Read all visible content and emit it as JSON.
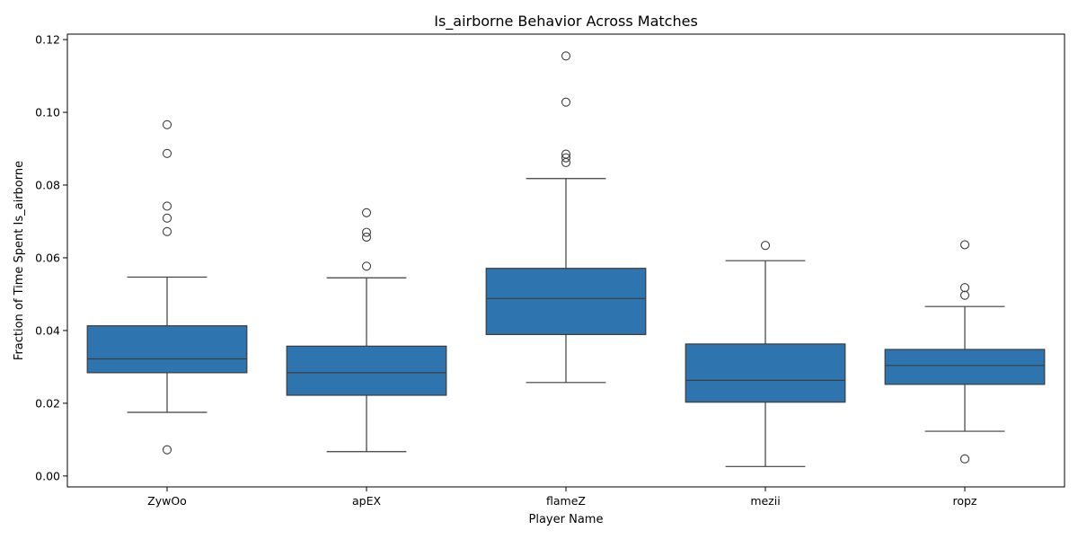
{
  "chart_data": {
    "type": "box",
    "title": "Is_airborne Behavior Across Matches",
    "xlabel": "Player Name",
    "ylabel": "Fraction of Time Spent Is_airborne",
    "ylim": [
      -0.003,
      0.1215
    ],
    "yticks": [
      "0.00",
      "0.02",
      "0.04",
      "0.06",
      "0.08",
      "0.10",
      "0.12"
    ],
    "grid": false,
    "box_color": "#2e75b0",
    "categories": [
      "ZywOo",
      "apEX",
      "flameZ",
      "mezii",
      "ropz"
    ],
    "boxes": [
      {
        "name": "ZywOo",
        "whisker_low": 0.0175,
        "q1": 0.0284,
        "median": 0.0322,
        "q3": 0.0413,
        "whisker_high": 0.0547,
        "outliers": [
          0.0072,
          0.0672,
          0.0709,
          0.0742,
          0.0887,
          0.0966
        ]
      },
      {
        "name": "apEX",
        "whisker_low": 0.0067,
        "q1": 0.0222,
        "median": 0.0284,
        "q3": 0.0357,
        "whisker_high": 0.0545,
        "outliers": [
          0.0577,
          0.0657,
          0.067,
          0.0724
        ]
      },
      {
        "name": "flameZ",
        "whisker_low": 0.0257,
        "q1": 0.0389,
        "median": 0.0488,
        "q3": 0.0571,
        "whisker_high": 0.0818,
        "outliers": [
          0.0862,
          0.0875,
          0.0885,
          0.1028,
          0.1155
        ]
      },
      {
        "name": "mezii",
        "whisker_low": 0.0026,
        "q1": 0.0203,
        "median": 0.0263,
        "q3": 0.0363,
        "whisker_high": 0.0592,
        "outliers": [
          0.0634
        ]
      },
      {
        "name": "ropz",
        "whisker_low": 0.0123,
        "q1": 0.0252,
        "median": 0.0304,
        "q3": 0.0348,
        "whisker_high": 0.0466,
        "outliers": [
          0.0047,
          0.0497,
          0.0518,
          0.0636
        ]
      }
    ]
  }
}
